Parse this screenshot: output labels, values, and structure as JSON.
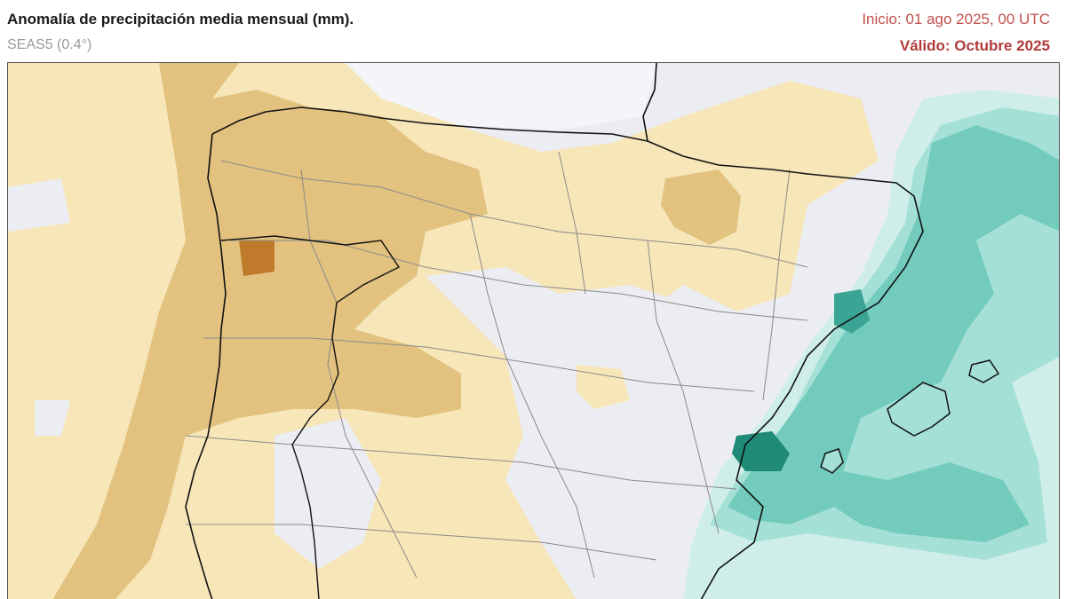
{
  "header": {
    "title": "Anomalía de precipitación media mensual (mm).",
    "model": "SEAS5 (0.4°)",
    "init": "Inicio: 01 ago 2025, 00 UTC",
    "valid": "Válido: Octubre 2025"
  },
  "map": {
    "region": "Iberian Peninsula and Balearic Islands",
    "colors": {
      "background": "#ecedf2",
      "sea": "#f4f5f8",
      "dry_light": "#f7e6b8",
      "dry_medium": "#e2c27e",
      "dry_strong": "#cf9d55",
      "dry_extreme": "#c07a2c",
      "wet_lightest": "#cfeeea",
      "wet_light": "#a4e0d6",
      "wet_medium": "#72cbbd",
      "wet_strong": "#3aa594",
      "wet_extreme": "#1f8a78",
      "coastline": "#111111",
      "borders": "#8a8a8a"
    }
  }
}
